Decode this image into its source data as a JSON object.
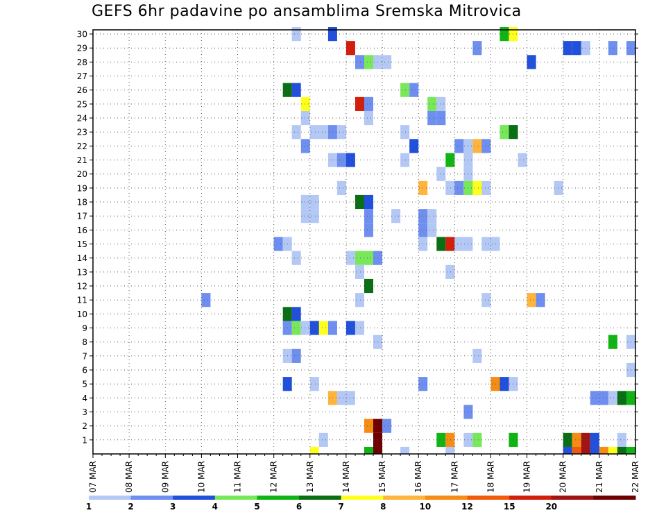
{
  "chart_data": {
    "type": "heatmap",
    "title": "GEFS 6hr padavine po ansamblima Sremska Mitrovica",
    "xlabel": "",
    "ylabel": "",
    "x_tick_labels": [
      "07 MAR",
      "08 MAR",
      "09 MAR",
      "10 MAR",
      "11 MAR",
      "12 MAR",
      "13 MAR",
      "14 MAR",
      "15 MAR",
      "16 MAR",
      "17 MAR",
      "18 MAR",
      "19 MAR",
      "20 MAR",
      "21 MAR",
      "22 MAR"
    ],
    "y_tick_labels": [
      "1",
      "2",
      "3",
      "4",
      "5",
      "6",
      "7",
      "8",
      "9",
      "10",
      "11",
      "12",
      "13",
      "14",
      "15",
      "16",
      "17",
      "18",
      "19",
      "20",
      "21",
      "22",
      "23",
      "24",
      "25",
      "26",
      "27",
      "28",
      "29",
      "30"
    ],
    "ylim": [
      0,
      30
    ],
    "x_unit": "6-hour steps since 07 MAR 00",
    "xlim": [
      0,
      60
    ],
    "grid": true,
    "color_levels": [
      {
        "label": "1",
        "color": "#b4c8f5"
      },
      {
        "label": "2",
        "color": "#6e8ef0"
      },
      {
        "label": "3",
        "color": "#2050dc"
      },
      {
        "label": "4",
        "color": "#78e85a"
      },
      {
        "label": "5",
        "color": "#10b414"
      },
      {
        "label": "6",
        "color": "#0a6e14"
      },
      {
        "label": "7",
        "color": "#ffff1e"
      },
      {
        "label": "8",
        "color": "#ffb43c"
      },
      {
        "label": "10",
        "color": "#f58c14"
      },
      {
        "label": "12",
        "color": "#f05a0a"
      },
      {
        "label": "15",
        "color": "#d21e0a"
      },
      {
        "label": "20",
        "color": "#a01414"
      },
      {
        "label": "",
        "color": "#6e0000"
      }
    ],
    "cells": [
      {
        "member": 30,
        "step": 22,
        "level": 0
      },
      {
        "member": 30,
        "step": 26,
        "level": 2
      },
      {
        "member": 30,
        "step": 45,
        "level": 4
      },
      {
        "member": 30,
        "step": 46,
        "level": 6
      },
      {
        "member": 29,
        "step": 28,
        "level": 10
      },
      {
        "member": 29,
        "step": 42,
        "level": 1
      },
      {
        "member": 29,
        "step": 52,
        "level": 2
      },
      {
        "member": 29,
        "step": 53,
        "level": 2
      },
      {
        "member": 29,
        "step": 54,
        "level": 0
      },
      {
        "member": 29,
        "step": 57,
        "level": 1
      },
      {
        "member": 29,
        "step": 59,
        "level": 1
      },
      {
        "member": 28,
        "step": 29,
        "level": 1
      },
      {
        "member": 28,
        "step": 30,
        "level": 3
      },
      {
        "member": 28,
        "step": 31,
        "level": 0
      },
      {
        "member": 28,
        "step": 32,
        "level": 0
      },
      {
        "member": 28,
        "step": 48,
        "level": 2
      },
      {
        "member": 26,
        "step": 21,
        "level": 5
      },
      {
        "member": 26,
        "step": 22,
        "level": 2
      },
      {
        "member": 26,
        "step": 34,
        "level": 3
      },
      {
        "member": 26,
        "step": 35,
        "level": 1
      },
      {
        "member": 25,
        "step": 23,
        "level": 6
      },
      {
        "member": 25,
        "step": 29,
        "level": 10
      },
      {
        "member": 25,
        "step": 30,
        "level": 1
      },
      {
        "member": 25,
        "step": 37,
        "level": 3
      },
      {
        "member": 25,
        "step": 38,
        "level": 0
      },
      {
        "member": 24,
        "step": 23,
        "level": 0
      },
      {
        "member": 24,
        "step": 30,
        "level": 0
      },
      {
        "member": 24,
        "step": 37,
        "level": 1
      },
      {
        "member": 24,
        "step": 38,
        "level": 1
      },
      {
        "member": 23,
        "step": 22,
        "level": 0
      },
      {
        "member": 23,
        "step": 24,
        "level": 0
      },
      {
        "member": 23,
        "step": 25,
        "level": 0
      },
      {
        "member": 23,
        "step": 26,
        "level": 1
      },
      {
        "member": 23,
        "step": 27,
        "level": 0
      },
      {
        "member": 23,
        "step": 34,
        "level": 0
      },
      {
        "member": 23,
        "step": 45,
        "level": 3
      },
      {
        "member": 23,
        "step": 46,
        "level": 5
      },
      {
        "member": 22,
        "step": 23,
        "level": 1
      },
      {
        "member": 22,
        "step": 35,
        "level": 2
      },
      {
        "member": 22,
        "step": 40,
        "level": 1
      },
      {
        "member": 22,
        "step": 41,
        "level": 0
      },
      {
        "member": 22,
        "step": 42,
        "level": 7
      },
      {
        "member": 22,
        "step": 43,
        "level": 1
      },
      {
        "member": 21,
        "step": 26,
        "level": 0
      },
      {
        "member": 21,
        "step": 27,
        "level": 1
      },
      {
        "member": 21,
        "step": 28,
        "level": 2
      },
      {
        "member": 21,
        "step": 34,
        "level": 0
      },
      {
        "member": 21,
        "step": 39,
        "level": 4
      },
      {
        "member": 21,
        "step": 41,
        "level": 0
      },
      {
        "member": 21,
        "step": 47,
        "level": 0
      },
      {
        "member": 20,
        "step": 38,
        "level": 0
      },
      {
        "member": 20,
        "step": 41,
        "level": 0
      },
      {
        "member": 19,
        "step": 27,
        "level": 0
      },
      {
        "member": 19,
        "step": 36,
        "level": 7
      },
      {
        "member": 19,
        "step": 39,
        "level": 0
      },
      {
        "member": 19,
        "step": 40,
        "level": 1
      },
      {
        "member": 19,
        "step": 41,
        "level": 3
      },
      {
        "member": 19,
        "step": 42,
        "level": 6
      },
      {
        "member": 19,
        "step": 43,
        "level": 0
      },
      {
        "member": 19,
        "step": 51,
        "level": 0
      },
      {
        "member": 18,
        "step": 23,
        "level": 0
      },
      {
        "member": 18,
        "step": 24,
        "level": 0
      },
      {
        "member": 18,
        "step": 29,
        "level": 5
      },
      {
        "member": 18,
        "step": 30,
        "level": 2
      },
      {
        "member": 17,
        "step": 23,
        "level": 0
      },
      {
        "member": 17,
        "step": 24,
        "level": 0
      },
      {
        "member": 17,
        "step": 30,
        "level": 1
      },
      {
        "member": 17,
        "step": 33,
        "level": 0
      },
      {
        "member": 17,
        "step": 36,
        "level": 1
      },
      {
        "member": 17,
        "step": 37,
        "level": 0
      },
      {
        "member": 16,
        "step": 30,
        "level": 1
      },
      {
        "member": 16,
        "step": 36,
        "level": 1
      },
      {
        "member": 16,
        "step": 37,
        "level": 0
      },
      {
        "member": 15,
        "step": 20,
        "level": 1
      },
      {
        "member": 15,
        "step": 21,
        "level": 0
      },
      {
        "member": 15,
        "step": 36,
        "level": 0
      },
      {
        "member": 15,
        "step": 38,
        "level": 5
      },
      {
        "member": 15,
        "step": 39,
        "level": 10
      },
      {
        "member": 15,
        "step": 40,
        "level": 0
      },
      {
        "member": 15,
        "step": 41,
        "level": 0
      },
      {
        "member": 15,
        "step": 43,
        "level": 0
      },
      {
        "member": 15,
        "step": 44,
        "level": 0
      },
      {
        "member": 14,
        "step": 22,
        "level": 0
      },
      {
        "member": 14,
        "step": 28,
        "level": 0
      },
      {
        "member": 14,
        "step": 29,
        "level": 3
      },
      {
        "member": 14,
        "step": 30,
        "level": 3
      },
      {
        "member": 14,
        "step": 31,
        "level": 1
      },
      {
        "member": 13,
        "step": 29,
        "level": 0
      },
      {
        "member": 13,
        "step": 39,
        "level": 0
      },
      {
        "member": 12,
        "step": 30,
        "level": 5
      },
      {
        "member": 11,
        "step": 12,
        "level": 1
      },
      {
        "member": 11,
        "step": 29,
        "level": 0
      },
      {
        "member": 11,
        "step": 43,
        "level": 0
      },
      {
        "member": 11,
        "step": 48,
        "level": 7
      },
      {
        "member": 11,
        "step": 49,
        "level": 1
      },
      {
        "member": 10,
        "step": 21,
        "level": 5
      },
      {
        "member": 10,
        "step": 22,
        "level": 2
      },
      {
        "member": 9,
        "step": 21,
        "level": 1
      },
      {
        "member": 9,
        "step": 22,
        "level": 3
      },
      {
        "member": 9,
        "step": 23,
        "level": 0
      },
      {
        "member": 9,
        "step": 24,
        "level": 2
      },
      {
        "member": 9,
        "step": 25,
        "level": 6
      },
      {
        "member": 9,
        "step": 26,
        "level": 1
      },
      {
        "member": 9,
        "step": 28,
        "level": 2
      },
      {
        "member": 9,
        "step": 29,
        "level": 0
      },
      {
        "member": 8,
        "step": 31,
        "level": 0
      },
      {
        "member": 8,
        "step": 57,
        "level": 4
      },
      {
        "member": 8,
        "step": 59,
        "level": 0
      },
      {
        "member": 7,
        "step": 21,
        "level": 0
      },
      {
        "member": 7,
        "step": 22,
        "level": 1
      },
      {
        "member": 7,
        "step": 42,
        "level": 0
      },
      {
        "member": 6,
        "step": 59,
        "level": 0
      },
      {
        "member": 5,
        "step": 21,
        "level": 2
      },
      {
        "member": 5,
        "step": 24,
        "level": 0
      },
      {
        "member": 5,
        "step": 36,
        "level": 1
      },
      {
        "member": 5,
        "step": 44,
        "level": 8
      },
      {
        "member": 5,
        "step": 45,
        "level": 2
      },
      {
        "member": 5,
        "step": 46,
        "level": 0
      },
      {
        "member": 4,
        "step": 26,
        "level": 7
      },
      {
        "member": 4,
        "step": 27,
        "level": 0
      },
      {
        "member": 4,
        "step": 28,
        "level": 0
      },
      {
        "member": 4,
        "step": 55,
        "level": 1
      },
      {
        "member": 4,
        "step": 56,
        "level": 1
      },
      {
        "member": 4,
        "step": 57,
        "level": 0
      },
      {
        "member": 4,
        "step": 58,
        "level": 5
      },
      {
        "member": 4,
        "step": 59,
        "level": 4
      },
      {
        "member": 3,
        "step": 41,
        "level": 1
      },
      {
        "member": 2,
        "step": 30,
        "level": 8
      },
      {
        "member": 2,
        "step": 31,
        "level": 12
      },
      {
        "member": 2,
        "step": 32,
        "level": 1
      },
      {
        "member": 1,
        "step": 25,
        "level": 0
      },
      {
        "member": 1,
        "step": 31,
        "level": 12
      },
      {
        "member": 1,
        "step": 38,
        "level": 4
      },
      {
        "member": 1,
        "step": 39,
        "level": 8
      },
      {
        "member": 1,
        "step": 41,
        "level": 0
      },
      {
        "member": 1,
        "step": 42,
        "level": 3
      },
      {
        "member": 1,
        "step": 46,
        "level": 4
      },
      {
        "member": 1,
        "step": 52,
        "level": 5
      },
      {
        "member": 1,
        "step": 53,
        "level": 8
      },
      {
        "member": 1,
        "step": 54,
        "level": 11
      },
      {
        "member": 1,
        "step": 55,
        "level": 2
      },
      {
        "member": 1,
        "step": 58,
        "level": 0
      },
      {
        "member": 0,
        "step": 24,
        "level": 6
      },
      {
        "member": 0,
        "step": 30,
        "level": 4
      },
      {
        "member": 0,
        "step": 31,
        "level": 12
      },
      {
        "member": 0,
        "step": 34,
        "level": 0
      },
      {
        "member": 0,
        "step": 39,
        "level": 0
      },
      {
        "member": 0,
        "step": 52,
        "level": 2
      },
      {
        "member": 0,
        "step": 53,
        "level": 9
      },
      {
        "member": 0,
        "step": 54,
        "level": 11
      },
      {
        "member": 0,
        "step": 55,
        "level": 2
      },
      {
        "member": 0,
        "step": 56,
        "level": 8
      },
      {
        "member": 0,
        "step": 57,
        "level": 6
      },
      {
        "member": 0,
        "step": 58,
        "level": 5
      },
      {
        "member": 0,
        "step": 59,
        "level": 4
      }
    ]
  }
}
